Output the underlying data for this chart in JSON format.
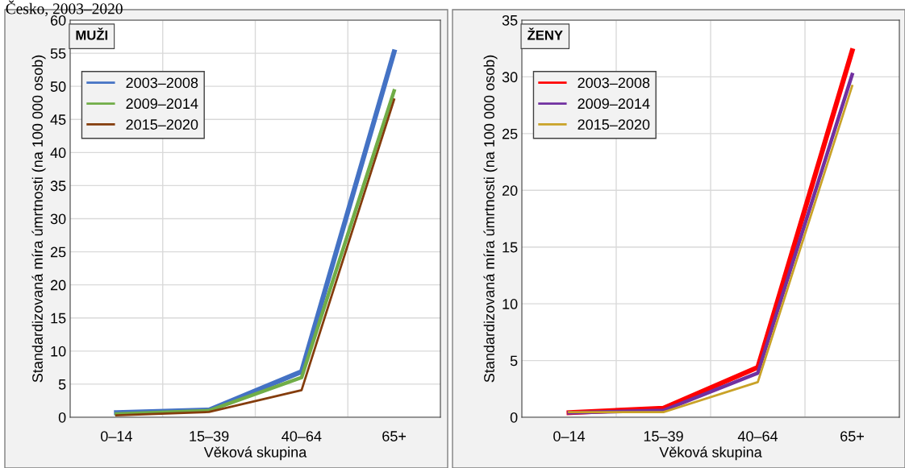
{
  "chart_data": [
    {
      "type": "line",
      "title": "Česko, 2003–2020",
      "annotations": [
        "MUŽI"
      ],
      "xlabel": "Věková skupina",
      "ylabel": "Standardizovaná míra úmrtnosti (na 100 000 osob)",
      "categories": [
        "0–14",
        "15–39",
        "40–64",
        "65+"
      ],
      "series": [
        {
          "name": "2003–2008",
          "color": "#4472c4",
          "values": [
            0.7,
            1.1,
            6.9,
            55.2
          ]
        },
        {
          "name": "2009–2014",
          "color": "#70ad47",
          "values": [
            0.5,
            1.0,
            6.0,
            49.3
          ]
        },
        {
          "name": "2015–2020",
          "color": "#843c0c",
          "values": [
            0.3,
            0.8,
            4.1,
            48.0
          ]
        }
      ],
      "ylim": [
        0,
        60
      ],
      "yticks": [
        0,
        5,
        10,
        15,
        20,
        25,
        30,
        35,
        40,
        45,
        50,
        55,
        60
      ],
      "grid": true,
      "legend": "top left",
      "marker": "none",
      "line_style": "solid"
    },
    {
      "type": "line",
      "annotations": [
        "ŽENY"
      ],
      "xlabel": "Věková skupina",
      "ylabel": "Standardizovaná míra úmrtnosti (na 100 000 osob)",
      "categories": [
        "0–14",
        "15–39",
        "40–64",
        "65+"
      ],
      "series": [
        {
          "name": "2003–2008",
          "color": "#ff0000",
          "values": [
            0.4,
            0.8,
            4.4,
            32.3
          ]
        },
        {
          "name": "2009–2014",
          "color": "#7030a0",
          "values": [
            0.4,
            0.6,
            3.9,
            30.2
          ]
        },
        {
          "name": "2015–2020",
          "color": "#c9a227",
          "values": [
            0.45,
            0.45,
            3.1,
            29.2
          ]
        }
      ],
      "ylim": [
        0,
        35
      ],
      "yticks": [
        0,
        5,
        10,
        15,
        20,
        25,
        30,
        35
      ],
      "grid": true,
      "legend": "top left",
      "marker": "none",
      "line_style": "solid"
    }
  ]
}
